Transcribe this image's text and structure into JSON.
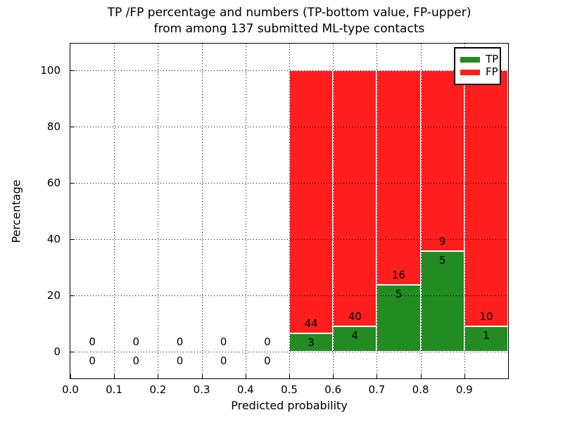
{
  "title": {
    "line1": "TP /FP percentage and numbers (TP-bottom value, FP-upper)",
    "line2": "from among 137 submitted ML-type contacts"
  },
  "axes": {
    "ylabel": "Percentage",
    "xlabel": "Predicted probability"
  },
  "legend": {
    "items": [
      {
        "label": "TP",
        "color": "#228b22"
      },
      {
        "label": "FP",
        "color": "#ff1e1e"
      }
    ]
  },
  "colors": {
    "tp": "#228b22",
    "fp": "#ff1e1e",
    "bar_edge": "#ffffff",
    "grid": "#000000"
  },
  "chart_data": {
    "type": "bar",
    "stacked": true,
    "title": "TP /FP percentage and numbers (TP-bottom value, FP-upper) from among 137 submitted ML-type contacts",
    "xlabel": "Predicted probability",
    "ylabel": "Percentage",
    "total_contacts": 137,
    "bin_width": 0.1,
    "bin_starts": [
      0.0,
      0.1,
      0.2,
      0.3,
      0.4,
      0.5,
      0.6,
      0.7,
      0.8,
      0.9
    ],
    "series": [
      {
        "name": "TP",
        "counts": [
          0,
          0,
          0,
          0,
          0,
          3,
          4,
          5,
          5,
          1
        ],
        "pct": [
          0,
          0,
          0,
          0,
          0,
          6.383,
          9.091,
          23.81,
          35.714,
          9.091
        ]
      },
      {
        "name": "FP",
        "counts": [
          0,
          0,
          0,
          0,
          0,
          44,
          40,
          16,
          9,
          10
        ],
        "pct": [
          0,
          0,
          0,
          0,
          0,
          93.617,
          90.909,
          76.19,
          64.286,
          90.909
        ]
      }
    ],
    "xticks": [
      "0.0",
      "0.1",
      "0.2",
      "0.3",
      "0.4",
      "0.5",
      "0.6",
      "0.7",
      "0.8",
      "0.9"
    ],
    "xtick_values": [
      0.0,
      0.1,
      0.2,
      0.3,
      0.4,
      0.5,
      0.6,
      0.7,
      0.8,
      0.9
    ],
    "yticks": [
      "0",
      "20",
      "40",
      "60",
      "80",
      "100"
    ],
    "ytick_values": [
      0,
      20,
      40,
      60,
      80,
      100
    ],
    "xlim": [
      0.0,
      1.0
    ],
    "ylim": [
      -9.5,
      109.5
    ],
    "grid": true,
    "grid_style": "dotted",
    "legend_position": "upper right",
    "annotation_note": "FP count above TP/FP boundary, TP count below boundary"
  }
}
